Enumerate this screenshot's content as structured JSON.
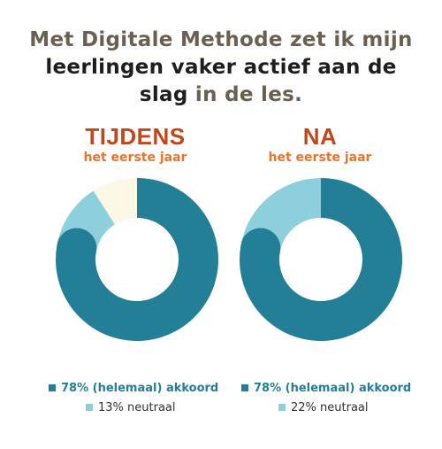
{
  "headline": {
    "line1": "Met Digitale Methode zet ik mijn",
    "line2": "leerlingen vaker actief aan de",
    "line3_dark": "slag",
    "line3_muted": " in de les."
  },
  "colors": {
    "agree": "#237f96",
    "neutral": "#8ecfde",
    "other": "#fdf7e6",
    "title": "#c0471a",
    "subtitle": "#e8742a"
  },
  "chart_data": [
    {
      "type": "pie",
      "title": "TIJDENS",
      "subtitle": "het eerste jaar",
      "categories": [
        "(helemaal) akkoord",
        "neutraal",
        ""
      ],
      "values": [
        78,
        13,
        9
      ],
      "legend": [
        {
          "label": "78% (helemaal) akkoord",
          "bold": true
        },
        {
          "label": "13% neutraal",
          "bold": false
        }
      ]
    },
    {
      "type": "pie",
      "title": "NA",
      "subtitle": "het eerste jaar",
      "categories": [
        "(helemaal) akkoord",
        "neutraal"
      ],
      "values": [
        78,
        22
      ],
      "legend": [
        {
          "label": "78% (helemaal) akkoord",
          "bold": true
        },
        {
          "label": "22% neutraal",
          "bold": false
        }
      ]
    }
  ]
}
